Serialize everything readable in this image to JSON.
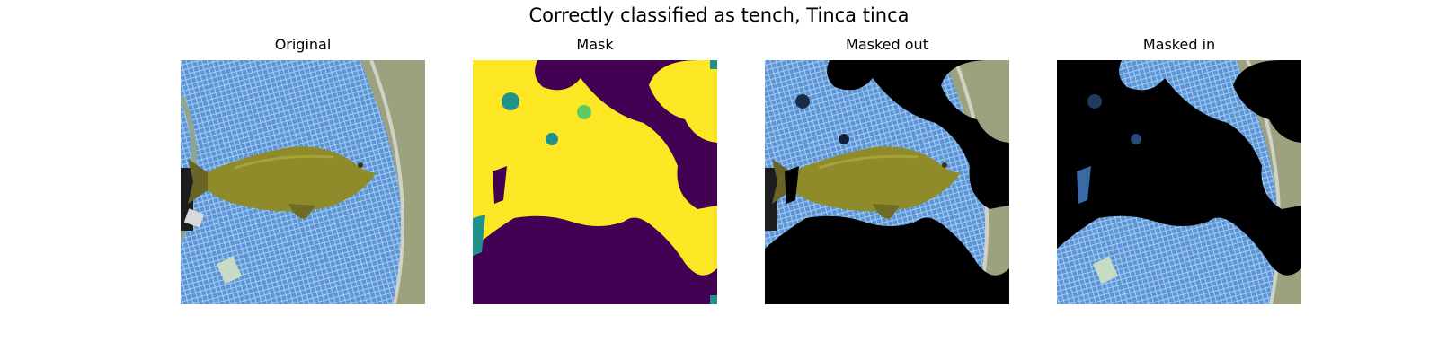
{
  "figure": {
    "title": "Correctly classified as tench, Tinca tinca"
  },
  "panels": [
    {
      "title": "Original"
    },
    {
      "title": "Mask"
    },
    {
      "title": "Masked out"
    },
    {
      "title": "Masked in"
    }
  ],
  "colors": {
    "mask_high": "#fde725",
    "mask_low": "#440154",
    "mask_mid": "#21918c",
    "net_blue": "#5b95d6",
    "fish_olive": "#8f8a2a",
    "background": "#000000"
  }
}
